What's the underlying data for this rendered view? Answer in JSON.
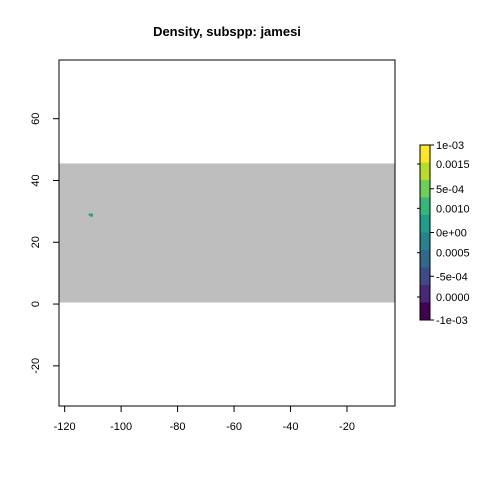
{
  "chart_data": {
    "type": "heatmap",
    "title": "Density, subspp: jamesi",
    "xlabel": "",
    "ylabel": "",
    "xlim": [
      -122,
      -3
    ],
    "ylim": [
      -33,
      79
    ],
    "x_ticks": [
      -120,
      -100,
      -80,
      -60,
      -40,
      -20
    ],
    "x_tick_labels": [
      "-120",
      "-100",
      "-80",
      "-60",
      "-40",
      "-20"
    ],
    "y_ticks": [
      -20,
      0,
      20,
      40,
      60
    ],
    "y_tick_labels": [
      "-20",
      "0",
      "20",
      "40",
      "60"
    ],
    "na_region": {
      "x": [
        -122,
        -3
      ],
      "y": [
        0.5,
        45.5
      ],
      "color": "#bebebe"
    },
    "cells": [
      {
        "x": [
          -111.5,
          -111.0
        ],
        "y": [
          28.6,
          29.3
        ],
        "value": 0.0
      },
      {
        "x": [
          -111.0,
          -110.0
        ],
        "y": [
          28.3,
          29.3
        ],
        "value": 0.0
      }
    ],
    "legend": {
      "position": "right",
      "min": -0.001,
      "max": 0.001,
      "colors": [
        "#440154",
        "#482878",
        "#3e4a89",
        "#31688e",
        "#26828e",
        "#1f9e89",
        "#35b779",
        "#6ece58",
        "#b5de2b",
        "#fde725"
      ],
      "labels_right": [
        {
          "value": 0.001,
          "text": "1e-03"
        },
        {
          "value": 0.0005,
          "text": "5e-04"
        },
        {
          "value": 0.0,
          "text": "0e+00"
        },
        {
          "value": -0.0005,
          "text": "-5e-04"
        },
        {
          "value": -0.001,
          "text": "-1e-03"
        }
      ],
      "labels_left": [
        {
          "value": 0.0015,
          "text": "0.0015"
        },
        {
          "value": 0.001,
          "text": "0.0010"
        },
        {
          "value": 0.0005,
          "text": "0.0005"
        },
        {
          "value": 0.0,
          "text": "0.0000"
        }
      ]
    }
  }
}
